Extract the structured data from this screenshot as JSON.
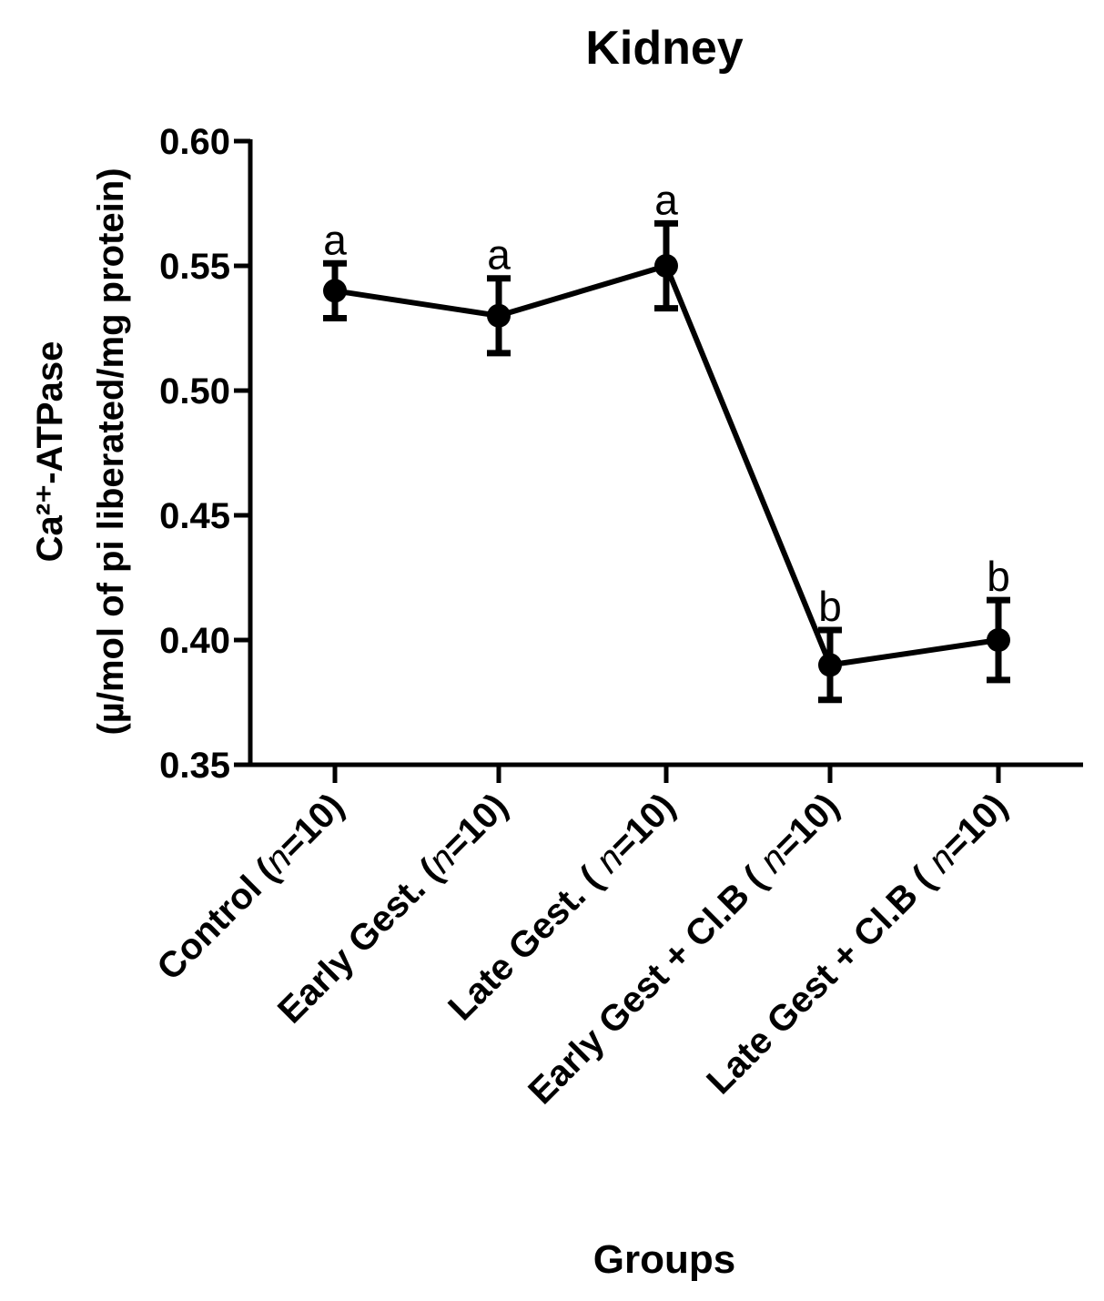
{
  "chart_data": {
    "type": "line",
    "title": "Kidney",
    "xlabel": "Groups",
    "ylabel_line1": "Ca²⁺-ATPase",
    "ylabel_line2": "(µ/mol of pi liberated/mg protein)",
    "ylim": [
      0.35,
      0.6
    ],
    "yticks": [
      "0.35",
      "0.40",
      "0.45",
      "0.50",
      "0.55",
      "0.60"
    ],
    "categories": [
      {
        "label": "Control (",
        "n": "n",
        "suffix": "=10)"
      },
      {
        "label": "Early Gest. (",
        "n": "n",
        "suffix": "=10)"
      },
      {
        "label": "Late Gest. ( ",
        "n": "n",
        "suffix": "=10)"
      },
      {
        "label": "Early Gest + Cl.B ( ",
        "n": "n",
        "suffix": "=10)"
      },
      {
        "label": "Late Gest + Cl.B ( ",
        "n": "n",
        "suffix": "=10)"
      }
    ],
    "series": [
      {
        "name": "Ca2+-ATPase",
        "values": [
          0.54,
          0.53,
          0.55,
          0.39,
          0.4
        ],
        "error": [
          0.011,
          0.015,
          0.017,
          0.014,
          0.016
        ],
        "annotations": [
          "a",
          "a",
          "a",
          "b",
          "b"
        ]
      }
    ],
    "color": "#000000"
  }
}
